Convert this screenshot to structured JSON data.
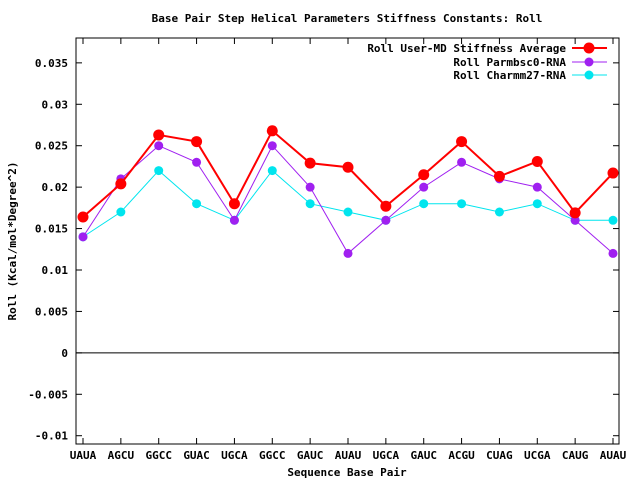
{
  "chart_data": {
    "type": "line",
    "title": "Base Pair Step Helical Parameters Stiffness Constants: Roll",
    "xlabel": "Sequence Base Pair",
    "ylabel": "Roll (Kcal/mol*Degree^2)",
    "categories": [
      "UAUA",
      "AGCU",
      "GGCC",
      "GUAC",
      "UGCA",
      "GGCC",
      "GAUC",
      "AUAU",
      "UGCA",
      "GAUC",
      "ACGU",
      "CUAG",
      "UCGA",
      "CAUG",
      "AUAU"
    ],
    "ylim": [
      -0.011,
      0.038
    ],
    "yticks": [
      -0.01,
      -0.005,
      0,
      0.005,
      0.01,
      0.015,
      0.02,
      0.025,
      0.03,
      0.035
    ],
    "ytick_labels": [
      "-0.01",
      "-0.005",
      "0",
      "0.005",
      "0.01",
      "0.015",
      "0.02",
      "0.025",
      "0.03",
      "0.035"
    ],
    "grid": false,
    "legend_position": "top-right",
    "series": [
      {
        "name": "Roll User-MD Stiffness Average",
        "color": "#ff0000",
        "values": [
          0.0164,
          0.0204,
          0.0263,
          0.0255,
          0.018,
          0.0268,
          0.0229,
          0.0224,
          0.0177,
          0.0215,
          0.0255,
          0.0213,
          0.0231,
          0.0169,
          0.0217
        ]
      },
      {
        "name": "Roll Parmbsc0-RNA",
        "color": "#a020f0",
        "values": [
          0.014,
          0.021,
          0.025,
          0.023,
          0.016,
          0.025,
          0.02,
          0.012,
          0.016,
          0.02,
          0.023,
          0.021,
          0.02,
          0.016,
          0.012
        ]
      },
      {
        "name": "Roll Charmm27-RNA",
        "color": "#00e5ee",
        "values": [
          0.014,
          0.017,
          0.022,
          0.018,
          0.016,
          0.022,
          0.018,
          0.017,
          0.016,
          0.018,
          0.018,
          0.017,
          0.018,
          0.016,
          0.016
        ]
      }
    ]
  }
}
